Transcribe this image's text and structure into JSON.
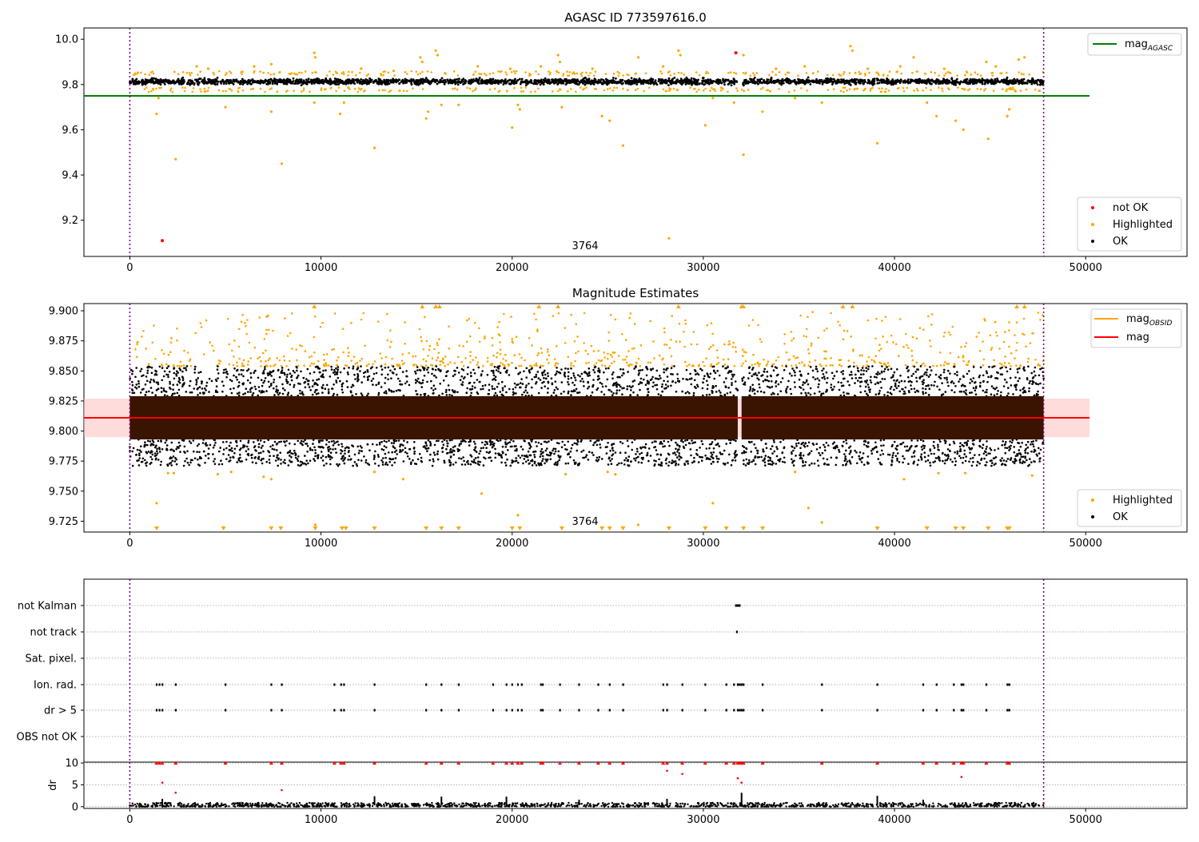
{
  "figure": {
    "title_top": "AGASC ID 773597616.0",
    "title_mid": "Magnitude Estimates"
  },
  "colors": {
    "ok": "#000000",
    "highlighted": "#ffa500",
    "not_ok": "#ff0000",
    "agasc_line": "#008000",
    "mag_line": "#ff0000",
    "mag_band": "#ffc0c0",
    "dense_core": "#3a1400",
    "obs_boundary": "#800080",
    "grid": "#b0b0b0"
  },
  "chart_data": [
    {
      "type": "scatter",
      "title": "AGASC ID 773597616.0",
      "xlim": [
        -2400,
        55300
      ],
      "ylim": [
        9.04,
        10.05
      ],
      "x_ticks": [
        0,
        10000,
        20000,
        30000,
        40000,
        50000
      ],
      "x_tick_labels": [
        "0",
        "10000",
        "20000",
        "30000",
        "40000",
        "50000"
      ],
      "y_ticks": [
        9.2,
        9.4,
        9.6,
        9.8,
        10.0
      ],
      "y_tick_labels": [
        "9.2",
        "9.4",
        "9.6",
        "9.8",
        "10.0"
      ],
      "obs_boundaries": [
        0,
        47800
      ],
      "agasc_mag": 9.75,
      "agasc_line_x": [
        -2400,
        50200
      ],
      "ok_band": {
        "x_range": [
          0,
          47800
        ],
        "y_center": 9.813,
        "y_spread": 0.02,
        "gap": [
          31800,
          32000
        ]
      },
      "highlighted_points": [
        [
          1400,
          9.67
        ],
        [
          1500,
          9.74
        ],
        [
          2400,
          9.47
        ],
        [
          5000,
          9.7
        ],
        [
          7400,
          9.68
        ],
        [
          7950,
          9.45
        ],
        [
          9650,
          9.72
        ],
        [
          11000,
          9.67
        ],
        [
          11200,
          9.72
        ],
        [
          12800,
          9.52
        ],
        [
          15500,
          9.65
        ],
        [
          15600,
          9.68
        ],
        [
          16300,
          9.71
        ],
        [
          17200,
          9.71
        ],
        [
          20000,
          9.61
        ],
        [
          20300,
          9.71
        ],
        [
          20400,
          9.69
        ],
        [
          22600,
          9.7
        ],
        [
          24700,
          9.66
        ],
        [
          25100,
          9.64
        ],
        [
          25800,
          9.53
        ],
        [
          28200,
          9.12
        ],
        [
          30100,
          9.62
        ],
        [
          30500,
          9.74
        ],
        [
          31600,
          9.72
        ],
        [
          32100,
          9.49
        ],
        [
          33100,
          9.68
        ],
        [
          34800,
          9.74
        ],
        [
          36200,
          9.72
        ],
        [
          39100,
          9.54
        ],
        [
          41700,
          9.72
        ],
        [
          42200,
          9.66
        ],
        [
          43200,
          9.64
        ],
        [
          43600,
          9.6
        ],
        [
          44900,
          9.56
        ],
        [
          45900,
          9.66
        ],
        [
          46000,
          9.69
        ],
        [
          9650,
          9.94
        ],
        [
          9700,
          9.92
        ],
        [
          15200,
          9.92
        ],
        [
          15300,
          9.9
        ],
        [
          16000,
          9.95
        ],
        [
          16100,
          9.93
        ],
        [
          22400,
          9.93
        ],
        [
          22500,
          9.9
        ],
        [
          26600,
          9.92
        ],
        [
          28700,
          9.95
        ],
        [
          28800,
          9.93
        ],
        [
          32100,
          9.93
        ],
        [
          37700,
          9.97
        ],
        [
          37800,
          9.95
        ],
        [
          41000,
          9.92
        ],
        [
          44800,
          9.9
        ],
        [
          46500,
          9.91
        ],
        [
          46800,
          9.92
        ],
        [
          3500,
          9.88
        ],
        [
          4100,
          9.87
        ],
        [
          6500,
          9.88
        ],
        [
          7400,
          9.89
        ],
        [
          12100,
          9.87
        ],
        [
          13800,
          9.86
        ],
        [
          18200,
          9.88
        ],
        [
          19900,
          9.87
        ],
        [
          21500,
          9.88
        ],
        [
          24200,
          9.87
        ],
        [
          27900,
          9.88
        ],
        [
          33800,
          9.87
        ],
        [
          35300,
          9.88
        ],
        [
          38600,
          9.87
        ],
        [
          40300,
          9.88
        ],
        [
          42600,
          9.87
        ],
        [
          45300,
          9.88
        ]
      ],
      "not_ok_points": [
        [
          1700,
          9.11
        ],
        [
          31700,
          9.94
        ]
      ],
      "count_label": "3764",
      "legend_top": {
        "position": "top-right",
        "entries": [
          "mag_AGASC"
        ]
      },
      "legend_bottom": {
        "position": "lower-right",
        "entries": [
          "not OK",
          "Highlighted",
          "OK"
        ]
      }
    },
    {
      "type": "scatter",
      "title": "Magnitude Estimates",
      "xlim": [
        -2400,
        55300
      ],
      "ylim": [
        9.716,
        9.906
      ],
      "x_ticks": [
        0,
        10000,
        20000,
        30000,
        40000,
        50000
      ],
      "x_tick_labels": [
        "0",
        "10000",
        "20000",
        "30000",
        "40000",
        "50000"
      ],
      "y_ticks": [
        9.725,
        9.75,
        9.775,
        9.8,
        9.825,
        9.85,
        9.875,
        9.9
      ],
      "y_tick_labels": [
        "9.725",
        "9.750",
        "9.775",
        "9.800",
        "9.825",
        "9.850",
        "9.875",
        "9.900"
      ],
      "obs_boundaries": [
        0,
        47800
      ],
      "mag": 9.811,
      "mag_band": [
        9.795,
        9.827
      ],
      "mag_line_x": [
        -2400,
        50200
      ],
      "ok_core": {
        "x_range": [
          0,
          47800
        ],
        "y_range": [
          9.793,
          9.829
        ],
        "gap": [
          31800,
          32000
        ]
      },
      "ok_spread": {
        "y_range": [
          9.771,
          9.854
        ]
      },
      "highlighted_low": [
        [
          1400,
          9.74
        ],
        [
          2000,
          9.765
        ],
        [
          2300,
          9.765
        ],
        [
          4600,
          9.764
        ],
        [
          5300,
          9.766
        ],
        [
          7000,
          9.762
        ],
        [
          7400,
          9.76
        ],
        [
          12800,
          9.766
        ],
        [
          14300,
          9.76
        ],
        [
          18400,
          9.748
        ],
        [
          20300,
          9.73
        ],
        [
          22800,
          9.764
        ],
        [
          25000,
          9.766
        ],
        [
          25400,
          9.764
        ],
        [
          30500,
          9.74
        ],
        [
          34800,
          9.766
        ],
        [
          35500,
          9.736
        ],
        [
          36200,
          9.724
        ],
        [
          40500,
          9.76
        ],
        [
          42300,
          9.765
        ],
        [
          43700,
          9.765
        ],
        [
          47200,
          9.763
        ],
        [
          9700,
          9.722
        ],
        [
          26600,
          9.722
        ]
      ],
      "offscale_low_markers": [
        1400,
        4900,
        7400,
        7900,
        9700,
        11100,
        11300,
        12800,
        15500,
        16300,
        17200,
        20000,
        20400,
        22600,
        24700,
        25100,
        25800,
        28200,
        30100,
        31200,
        32100,
        33100,
        39100,
        41700,
        43200,
        43600,
        44900,
        45900,
        46000
      ],
      "offscale_high_markers": [
        9650,
        15300,
        16000,
        16200,
        21400,
        22400,
        28700,
        32000,
        32100,
        37300,
        37800,
        46400,
        46800
      ],
      "count_label": "3764",
      "legend_top": {
        "position": "top-right",
        "entries": [
          "mag_OBSID",
          "mag"
        ]
      },
      "legend_bottom": {
        "position": "lower-right",
        "entries": [
          "Highlighted",
          "OK"
        ]
      }
    },
    {
      "type": "scatter",
      "title": "",
      "xlim": [
        -2400,
        55300
      ],
      "flag_rows": [
        "not Kalman",
        "not track",
        "Sat. pixel.",
        "Ion. rad.",
        "dr > 5",
        "OBS not OK"
      ],
      "obs_boundaries": [
        0,
        47800
      ],
      "flag_events": {
        "not Kalman": [
          31700,
          31750,
          31800,
          31850,
          31900
        ],
        "not track": [
          31750
        ],
        "Sat. pixel.": [],
        "Ion. rad.": [
          1400,
          1550,
          1700,
          2400,
          5000,
          7400,
          7950,
          10700,
          11050,
          11200,
          12800,
          15500,
          16300,
          17200,
          19000,
          19700,
          20000,
          20300,
          20500,
          21500,
          21600,
          22500,
          23500,
          24500,
          25100,
          25800,
          27900,
          28100,
          28900,
          30100,
          31200,
          31600,
          31800,
          31900,
          32000,
          32100,
          33100,
          36200,
          39100,
          41500,
          42200,
          43100,
          43500,
          43600,
          44800,
          45900,
          46000
        ],
        "dr > 5": [
          1400,
          1550,
          1700,
          2400,
          5000,
          7400,
          7950,
          10700,
          11050,
          11200,
          12800,
          15500,
          16300,
          17200,
          19000,
          19700,
          20000,
          20300,
          20500,
          21500,
          21600,
          22500,
          23500,
          24500,
          25100,
          25800,
          27900,
          28100,
          28900,
          30100,
          31200,
          31600,
          31800,
          31900,
          32000,
          32100,
          33100,
          36200,
          39100,
          41500,
          42200,
          43100,
          43500,
          43600,
          44800,
          45900,
          46000
        ],
        "OBS not OK": []
      }
    },
    {
      "type": "scatter",
      "title": "",
      "ylabel": "dr",
      "xlim": [
        -2400,
        55300
      ],
      "ylim": [
        -0.4,
        10.2
      ],
      "x_ticks": [
        0,
        10000,
        20000,
        30000,
        40000,
        50000
      ],
      "x_tick_labels": [
        "0",
        "10000",
        "20000",
        "30000",
        "40000",
        "50000"
      ],
      "y_ticks": [
        0,
        5,
        10
      ],
      "y_tick_labels": [
        "0",
        "5",
        "10"
      ],
      "obs_boundaries": [
        0,
        47800
      ],
      "ok_band": {
        "x_range": [
          0,
          47800
        ],
        "y_range": [
          0,
          0.9
        ]
      },
      "dr_spikes": [
        [
          1700,
          1.8
        ],
        [
          12800,
          2.4
        ],
        [
          16300,
          2.3
        ],
        [
          19700,
          2.3
        ],
        [
          23500,
          1.6
        ],
        [
          28100,
          1.8
        ],
        [
          32000,
          3.2
        ],
        [
          39100,
          2.5
        ],
        [
          41500,
          1.6
        ]
      ],
      "not_ok_capped": [
        1400,
        1550,
        1700,
        2400,
        5000,
        7400,
        7950,
        10700,
        11050,
        11200,
        12800,
        15500,
        16300,
        17200,
        19000,
        19700,
        20000,
        20300,
        20500,
        21500,
        21600,
        22500,
        23500,
        24500,
        25100,
        25800,
        27900,
        28100,
        28900,
        30100,
        31200,
        31600,
        31800,
        31900,
        32000,
        32100,
        33100,
        36200,
        39100,
        41500,
        42200,
        43100,
        43500,
        43600,
        44800,
        45900,
        46000
      ],
      "not_ok_points": [
        [
          1700,
          5.5
        ],
        [
          2400,
          3.2
        ],
        [
          7950,
          3.8
        ],
        [
          28100,
          8.2
        ],
        [
          28900,
          7.5
        ],
        [
          31800,
          6.5
        ],
        [
          32000,
          5.5
        ],
        [
          43500,
          6.8
        ]
      ]
    }
  ]
}
